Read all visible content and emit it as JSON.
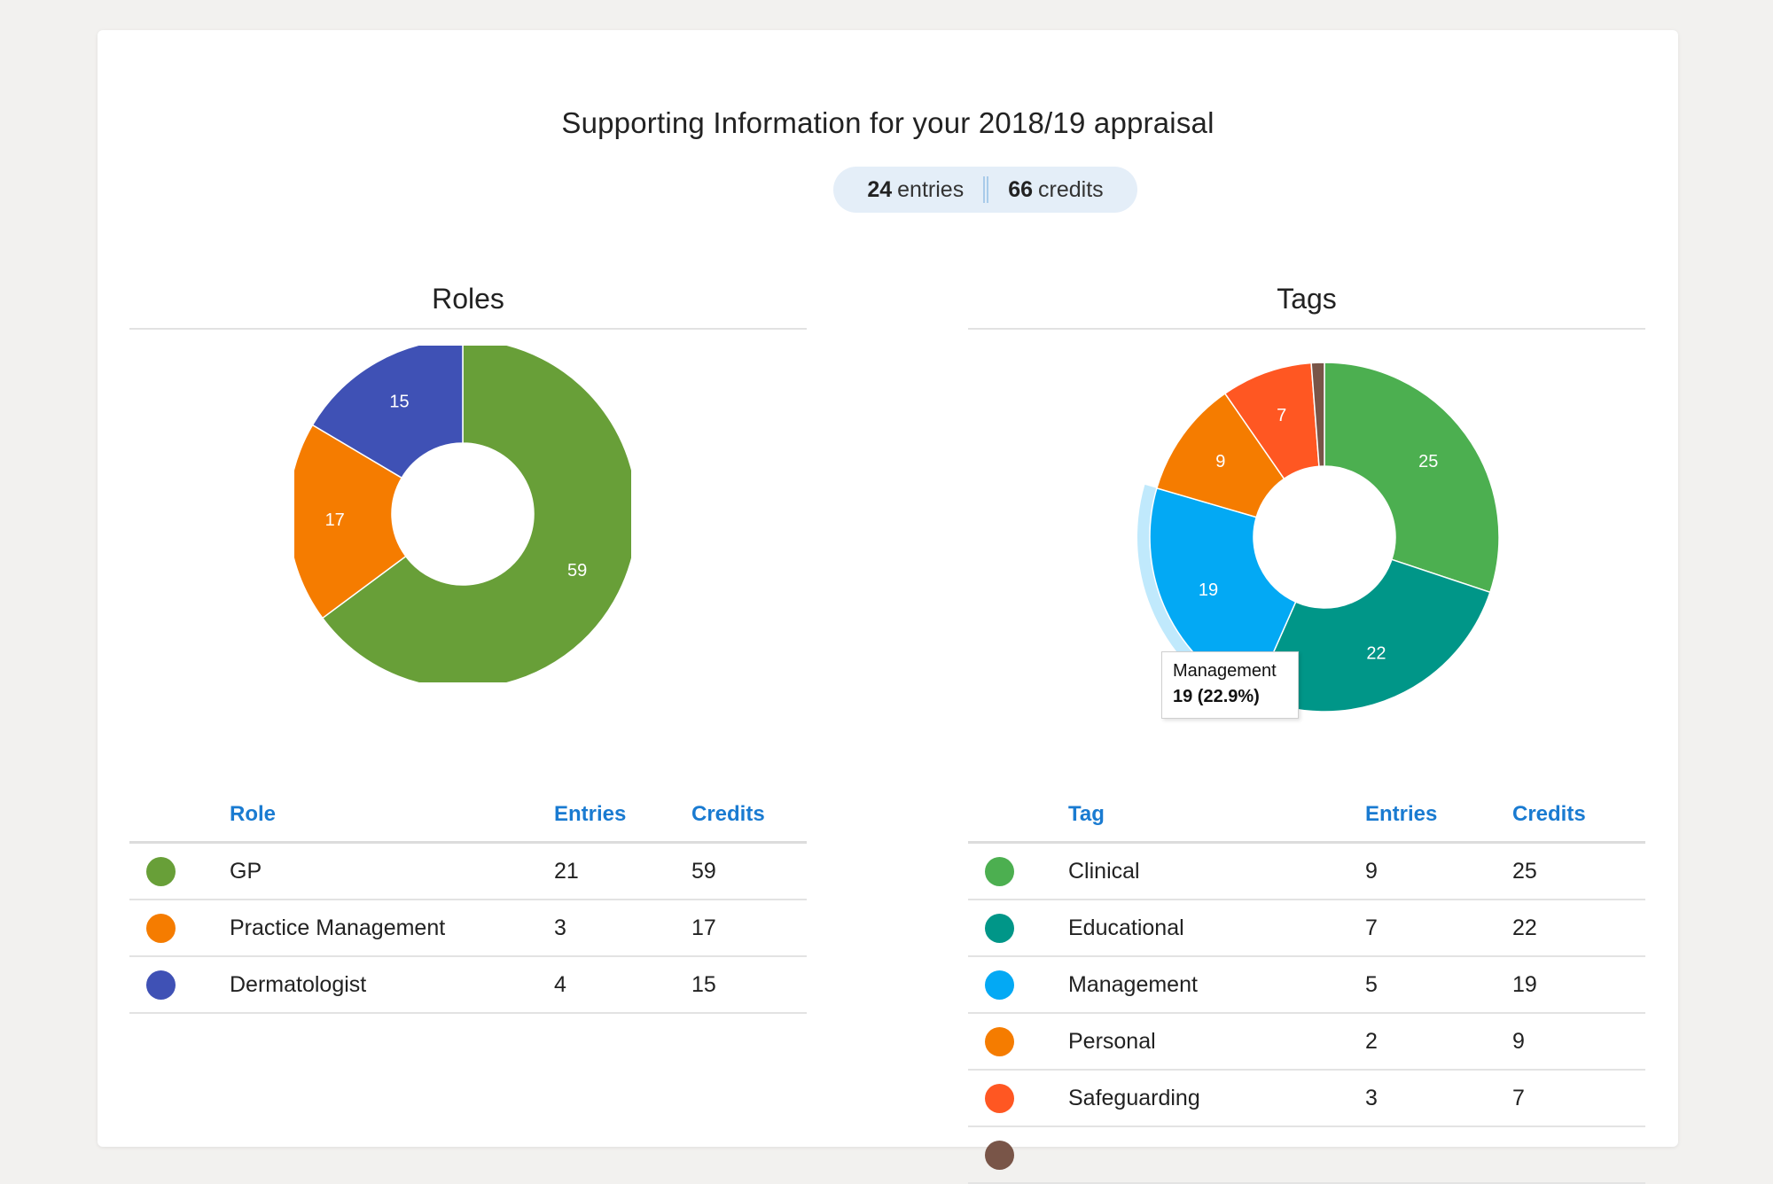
{
  "page": {
    "title": "Supporting Information for your 2018/19 appraisal",
    "entries_count": "24",
    "entries_label": "entries",
    "credits_count": "66",
    "credits_label": "credits"
  },
  "roles": {
    "title": "Roles",
    "columns": {
      "name": "Role",
      "entries": "Entries",
      "credits": "Credits"
    },
    "rows": [
      {
        "name": "GP",
        "entries": "21",
        "credits": "59",
        "color": "#689f38"
      },
      {
        "name": "Practice Management",
        "entries": "3",
        "credits": "17",
        "color": "#f57c00"
      },
      {
        "name": "Dermatologist",
        "entries": "4",
        "credits": "15",
        "color": "#3f51b5"
      }
    ]
  },
  "tags": {
    "title": "Tags",
    "columns": {
      "name": "Tag",
      "entries": "Entries",
      "credits": "Credits"
    },
    "rows": [
      {
        "name": "Clinical",
        "entries": "9",
        "credits": "25",
        "color": "#4caf50"
      },
      {
        "name": "Educational",
        "entries": "7",
        "credits": "22",
        "color": "#009688"
      },
      {
        "name": "Management",
        "entries": "5",
        "credits": "19",
        "color": "#03a9f4"
      },
      {
        "name": "Personal",
        "entries": "2",
        "credits": "9",
        "color": "#f57c00"
      },
      {
        "name": "Safeguarding",
        "entries": "3",
        "credits": "7",
        "color": "#ff5722"
      }
    ],
    "tooltip": {
      "name": "Management",
      "value": "19 (22.9%)"
    }
  },
  "chart_data": [
    {
      "type": "pie",
      "categories": [
        "GP",
        "Practice Management",
        "Dermatologist"
      ],
      "values": [
        59,
        17,
        15
      ],
      "colors": [
        "#689f38",
        "#f57c00",
        "#3f51b5"
      ]
    },
    {
      "type": "pie",
      "categories": [
        "Clinical",
        "Educational",
        "Management",
        "Personal",
        "Safeguarding",
        ""
      ],
      "values": [
        25,
        22,
        19,
        9,
        7,
        1
      ],
      "colors": [
        "#4caf50",
        "#009688",
        "#03a9f4",
        "#f57c00",
        "#ff5722",
        "#795548"
      ],
      "highlighted": "Management"
    }
  ]
}
